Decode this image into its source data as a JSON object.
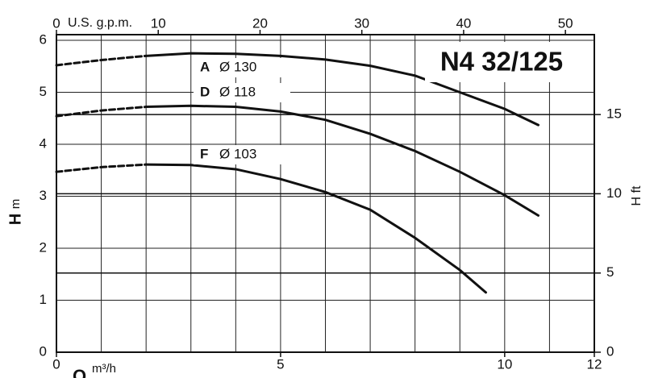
{
  "chart_data": {
    "type": "line",
    "title": "N4 32/125",
    "x_label": "Q",
    "x_unit": "m³/h",
    "x2_label": "U.S. g.p.m.",
    "y_label": "H",
    "y_unit": "m",
    "y2_label": "H ft",
    "xlim": [
      0,
      12
    ],
    "xticks": [
      0,
      5,
      10,
      12
    ],
    "xgrid": [
      1,
      2,
      3,
      4,
      5,
      6,
      7,
      8,
      9,
      10,
      11
    ],
    "x2lim": [
      0,
      52.84
    ],
    "x2ticks": [
      0,
      10,
      20,
      30,
      40,
      50
    ],
    "ylim": [
      0,
      6
    ],
    "yticks": [
      0,
      1,
      2,
      3,
      4,
      5,
      6
    ],
    "y2lim": [
      0,
      19.685
    ],
    "y2ticks": [
      0,
      5,
      10,
      15
    ],
    "grid": true,
    "series": [
      {
        "name": "A",
        "label": "Ø 130",
        "color": "#111111",
        "dashed_to_x": 2,
        "x": [
          0,
          1,
          2,
          3,
          4,
          5,
          6,
          7,
          8,
          9,
          10,
          10.75
        ],
        "values": [
          5.52,
          5.62,
          5.7,
          5.75,
          5.74,
          5.7,
          5.63,
          5.51,
          5.32,
          5.0,
          4.68,
          4.37
        ]
      },
      {
        "name": "D",
        "label": "Ø 118",
        "color": "#111111",
        "dashed_to_x": 2,
        "x": [
          0,
          1,
          2,
          3,
          4,
          5,
          6,
          7,
          8,
          9,
          10,
          10.75
        ],
        "values": [
          4.54,
          4.65,
          4.72,
          4.74,
          4.72,
          4.63,
          4.47,
          4.2,
          3.87,
          3.47,
          3.02,
          2.63
        ]
      },
      {
        "name": "F",
        "label": "Ø 103",
        "color": "#111111",
        "dashed_to_x": 2,
        "x": [
          0,
          1,
          2,
          3,
          4,
          5,
          6,
          7,
          8,
          9,
          9.58
        ],
        "values": [
          3.47,
          3.56,
          3.61,
          3.6,
          3.52,
          3.33,
          3.08,
          2.74,
          2.2,
          1.58,
          1.15
        ]
      }
    ]
  }
}
